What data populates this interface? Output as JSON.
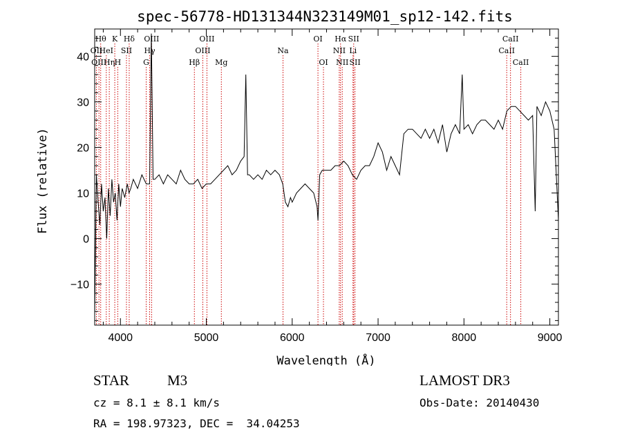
{
  "chart_data": {
    "type": "line",
    "title": "spec-56778-HD131344N323149M01_sp12-142.fits",
    "xlabel": "Wavelength (Å)",
    "ylabel": "Flux (relative)",
    "xlim": [
      3700,
      9100
    ],
    "ylim": [
      -19,
      46
    ],
    "xticks": [
      4000,
      5000,
      6000,
      7000,
      8000,
      9000
    ],
    "yticks": [
      -10,
      0,
      10,
      20,
      30,
      40
    ],
    "grid": false,
    "series": [
      {
        "values_x": [
          3700,
          3720,
          3740,
          3760,
          3780,
          3800,
          3820,
          3840,
          3860,
          3880,
          3900,
          3920,
          3940,
          3960,
          3980,
          4000,
          4020,
          4050,
          4080,
          4100,
          4120,
          4150,
          4200,
          4250,
          4300,
          4340,
          4360,
          4380,
          4400,
          4450,
          4500,
          4550,
          4600,
          4650,
          4700,
          4750,
          4800,
          4850,
          4900,
          4950,
          5000,
          5050,
          5100,
          5150,
          5200,
          5250,
          5300,
          5350,
          5400,
          5440,
          5460,
          5480,
          5500,
          5550,
          5600,
          5650,
          5700,
          5750,
          5800,
          5850,
          5890,
          5920,
          5950,
          5980,
          6000,
          6050,
          6100,
          6150,
          6200,
          6250,
          6290,
          6300,
          6320,
          6350,
          6400,
          6450,
          6500,
          6550,
          6600,
          6650,
          6700,
          6750,
          6800,
          6850,
          6900,
          6950,
          7000,
          7050,
          7100,
          7150,
          7200,
          7250,
          7300,
          7350,
          7400,
          7450,
          7500,
          7550,
          7600,
          7650,
          7700,
          7750,
          7800,
          7850,
          7900,
          7950,
          7980,
          8000,
          8050,
          8100,
          8150,
          8200,
          8250,
          8300,
          8350,
          8400,
          8450,
          8500,
          8550,
          8600,
          8650,
          8700,
          8750,
          8800,
          8830,
          8850,
          8900,
          8950,
          9000,
          9050,
          9100
        ],
        "values_y": [
          -17,
          14,
          8,
          3,
          12,
          6,
          9,
          0,
          11,
          5,
          13,
          8,
          10,
          4,
          12,
          7,
          11,
          9,
          12,
          10,
          11,
          13,
          11,
          14,
          12,
          12,
          45,
          13,
          13,
          14,
          12,
          14,
          13,
          12,
          15,
          13,
          12,
          12,
          13,
          11,
          12,
          12,
          13,
          14,
          15,
          16,
          14,
          15,
          17,
          18,
          36,
          14,
          14,
          13,
          14,
          13,
          15,
          14,
          15,
          14,
          12,
          8,
          7,
          9,
          8,
          10,
          11,
          12,
          11,
          10,
          7,
          4,
          14,
          15,
          15,
          15,
          16,
          16,
          17,
          16,
          14,
          13,
          15,
          16,
          16,
          18,
          21,
          19,
          15,
          18,
          16,
          14,
          23,
          24,
          24,
          23,
          22,
          24,
          22,
          24,
          21,
          25,
          19,
          23,
          25,
          23,
          36,
          24,
          25,
          23,
          25,
          26,
          26,
          25,
          24,
          26,
          24,
          28,
          29,
          29,
          28,
          27,
          26,
          27,
          6,
          29,
          27,
          30,
          28,
          24,
          4
        ]
      }
    ],
    "line_markers": [
      {
        "wave": 3720,
        "label": "OII",
        "row": 1
      },
      {
        "wave": 3750,
        "label": "OIII",
        "row": 2
      },
      {
        "wave": 3770,
        "label": "Hθ",
        "row": 0
      },
      {
        "wave": 3835,
        "label": "HeI",
        "row": 1
      },
      {
        "wave": 3870,
        "label": "Hη",
        "row": 2
      },
      {
        "wave": 3934,
        "label": "K",
        "row": 0
      },
      {
        "wave": 3969,
        "label": "H",
        "row": 2
      },
      {
        "wave": 4070,
        "label": "SII",
        "row": 1
      },
      {
        "wave": 4102,
        "label": "Hδ",
        "row": 0
      },
      {
        "wave": 4300,
        "label": "G",
        "row": 2
      },
      {
        "wave": 4340,
        "label": "Hγ",
        "row": 1
      },
      {
        "wave": 4363,
        "label": "OIII",
        "row": 0
      },
      {
        "wave": 4861,
        "label": "Hβ",
        "row": 2
      },
      {
        "wave": 4959,
        "label": "OIII",
        "row": 1
      },
      {
        "wave": 5007,
        "label": "OIII",
        "row": 0
      },
      {
        "wave": 5175,
        "label": "Mg",
        "row": 2
      },
      {
        "wave": 5893,
        "label": "Na",
        "row": 1
      },
      {
        "wave": 6300,
        "label": "OI",
        "row": 0
      },
      {
        "wave": 6364,
        "label": "OI",
        "row": 2
      },
      {
        "wave": 6548,
        "label": "NII",
        "row": 1
      },
      {
        "wave": 6563,
        "label": "Hα",
        "row": 0
      },
      {
        "wave": 6583,
        "label": "NII",
        "row": 2
      },
      {
        "wave": 6708,
        "label": "Li",
        "row": 1
      },
      {
        "wave": 6716,
        "label": "SII",
        "row": 0
      },
      {
        "wave": 6731,
        "label": "SII",
        "row": 2
      },
      {
        "wave": 8498,
        "label": "CaII",
        "row": 1
      },
      {
        "wave": 8542,
        "label": "CaII",
        "row": 0
      },
      {
        "wave": 8662,
        "label": "CaII",
        "row": 2
      }
    ],
    "colors": {
      "spectrum": "#000000",
      "markers": "#cc0000",
      "axes": "#000000"
    }
  },
  "info": {
    "class_label": "STAR",
    "subclass": "M3",
    "survey": "LAMOST DR3",
    "cz": "cz = 8.1 ± 8.1 km/s",
    "obs_date": "Obs-Date: 20140430",
    "radec": "RA = 198.97323, DEC =  34.04253"
  }
}
